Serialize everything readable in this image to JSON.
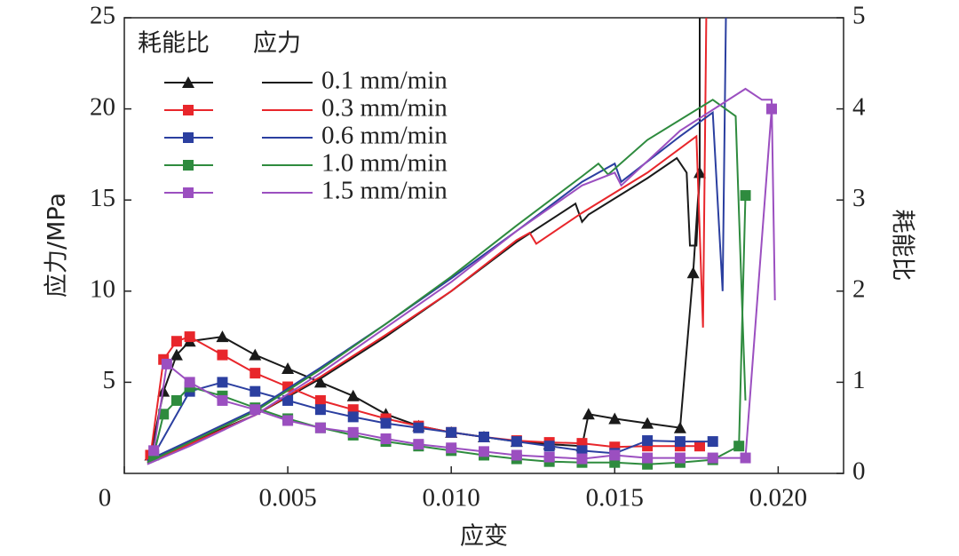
{
  "chart_data": {
    "type": "line",
    "x_label": "应变",
    "y_label": "应力/MPa",
    "y2_label": "耗能比",
    "legend_headers": [
      "耗能比",
      "应力"
    ],
    "xlim": [
      0,
      0.022
    ],
    "ylim": [
      0,
      25
    ],
    "y2lim": [
      0,
      5
    ],
    "xticks": [
      0,
      0.005,
      {
        "value": 0.01,
        "label": "0.010"
      },
      0.015,
      {
        "value": 0.02,
        "label": "0.020"
      }
    ],
    "yticks": [
      5,
      10,
      15,
      20,
      25
    ],
    "y2ticks": [
      0,
      1,
      2,
      3,
      4,
      5
    ],
    "series": [
      {
        "name": "0.1 mm/min",
        "color": "#1a1a1a",
        "marker": "triangle",
        "x": [
          0.0007,
          0.002,
          0.004,
          0.006,
          0.008,
          0.01,
          0.012,
          0.0138,
          0.014,
          0.0142,
          0.016,
          0.0169,
          0.0172,
          0.0173,
          0.0175,
          0.0176,
          0.0176
        ],
        "values": [
          0.7,
          1.7,
          3.2,
          5.2,
          7.5,
          10,
          12.7,
          14.8,
          13.8,
          14.2,
          16.2,
          17.3,
          16.5,
          12.5,
          12.5,
          16.5,
          25
        ],
        "ratio_axis": "y2",
        "ratio_x": [
          0.0008,
          0.0012,
          0.0016,
          0.002,
          0.003,
          0.004,
          0.005,
          0.006,
          0.007,
          0.008,
          0.009,
          0.01,
          0.011,
          0.012,
          0.013,
          0.014,
          0.0142,
          0.015,
          0.016,
          0.017,
          0.0174,
          0.0176
        ],
        "ratio": [
          0.2,
          0.9,
          1.3,
          1.45,
          1.5,
          1.3,
          1.15,
          1.0,
          0.85,
          0.65,
          0.52,
          0.45,
          0.4,
          0.35,
          0.32,
          0.3,
          0.65,
          0.6,
          0.55,
          0.5,
          2.2,
          3.3
        ]
      },
      {
        "name": "0.3 mm/min",
        "color": "#e8262b",
        "marker": "square",
        "x": [
          0.0007,
          0.002,
          0.004,
          0.006,
          0.008,
          0.01,
          0.012,
          0.0124,
          0.0126,
          0.014,
          0.016,
          0.0175,
          0.0177,
          0.0178
        ],
        "values": [
          0.6,
          1.6,
          3.2,
          5.3,
          7.6,
          10,
          12.8,
          13.2,
          12.6,
          14.3,
          16.5,
          18.5,
          8,
          25
        ],
        "ratio_axis": "y2",
        "ratio_x": [
          0.0008,
          0.0012,
          0.0016,
          0.002,
          0.003,
          0.004,
          0.005,
          0.006,
          0.007,
          0.008,
          0.009,
          0.01,
          0.011,
          0.012,
          0.013,
          0.014,
          0.015,
          0.016,
          0.017,
          0.0176
        ],
        "ratio": [
          0.2,
          1.25,
          1.45,
          1.5,
          1.3,
          1.1,
          0.95,
          0.8,
          0.7,
          0.6,
          0.52,
          0.45,
          0.4,
          0.36,
          0.34,
          0.33,
          0.29,
          0.3,
          0.3,
          0.3
        ]
      },
      {
        "name": "0.6 mm/min",
        "color": "#2b3fa0",
        "marker": "square",
        "x": [
          0.0007,
          0.002,
          0.004,
          0.006,
          0.008,
          0.01,
          0.012,
          0.014,
          0.015,
          0.0152,
          0.017,
          0.018,
          0.0183,
          0.0184
        ],
        "values": [
          0.7,
          1.8,
          3.5,
          5.8,
          8.2,
          10.7,
          13.3,
          16,
          17,
          16,
          18.5,
          19.8,
          10,
          25
        ],
        "ratio_axis": "y2",
        "ratio_x": [
          0.0009,
          0.002,
          0.003,
          0.004,
          0.005,
          0.006,
          0.007,
          0.008,
          0.009,
          0.01,
          0.011,
          0.012,
          0.013,
          0.014,
          0.015,
          0.016,
          0.017,
          0.018
        ],
        "ratio": [
          0.2,
          0.9,
          1.0,
          0.9,
          0.8,
          0.7,
          0.62,
          0.55,
          0.5,
          0.45,
          0.4,
          0.35,
          0.3,
          0.25,
          0.22,
          0.36,
          0.35,
          0.35
        ]
      },
      {
        "name": "1.0 mm/min",
        "color": "#2e8b3e",
        "marker": "square",
        "x": [
          0.0007,
          0.002,
          0.004,
          0.006,
          0.008,
          0.01,
          0.012,
          0.014,
          0.0145,
          0.0148,
          0.016,
          0.018,
          0.0187,
          0.0189,
          0.019
        ],
        "values": [
          0.6,
          1.7,
          3.4,
          5.7,
          8.2,
          10.8,
          13.6,
          16.3,
          17,
          16.4,
          18.3,
          20.5,
          19.6,
          9,
          4
        ],
        "ratio_axis": "y2",
        "ratio_x": [
          0.0009,
          0.0012,
          0.0016,
          0.002,
          0.003,
          0.004,
          0.005,
          0.006,
          0.007,
          0.008,
          0.009,
          0.01,
          0.011,
          0.012,
          0.013,
          0.014,
          0.015,
          0.016,
          0.017,
          0.018,
          0.0188,
          0.019
        ],
        "ratio": [
          0.2,
          0.65,
          0.8,
          0.95,
          0.85,
          0.72,
          0.6,
          0.5,
          0.42,
          0.35,
          0.3,
          0.25,
          0.2,
          0.16,
          0.13,
          0.12,
          0.12,
          0.1,
          0.12,
          0.15,
          0.3,
          3.05
        ]
      },
      {
        "name": "1.5 mm/min",
        "color": "#9b4fc0",
        "marker": "square",
        "x": [
          0.0007,
          0.002,
          0.004,
          0.006,
          0.008,
          0.01,
          0.012,
          0.014,
          0.015,
          0.0152,
          0.017,
          0.019,
          0.0195,
          0.0198,
          0.0199
        ],
        "values": [
          0.5,
          1.5,
          3.2,
          5.5,
          8,
          10.5,
          13.3,
          15.8,
          16.5,
          15.8,
          18.8,
          21.1,
          20.5,
          20.5,
          9.5
        ],
        "ratio_axis": "y2",
        "ratio_x": [
          0.0009,
          0.0013,
          0.002,
          0.003,
          0.004,
          0.005,
          0.006,
          0.007,
          0.008,
          0.009,
          0.01,
          0.011,
          0.012,
          0.013,
          0.014,
          0.015,
          0.016,
          0.017,
          0.018,
          0.019,
          0.0198
        ],
        "ratio": [
          0.25,
          1.2,
          1.0,
          0.8,
          0.7,
          0.58,
          0.5,
          0.45,
          0.38,
          0.32,
          0.28,
          0.24,
          0.2,
          0.18,
          0.16,
          0.2,
          0.17,
          0.17,
          0.17,
          0.17,
          4
        ]
      }
    ]
  }
}
